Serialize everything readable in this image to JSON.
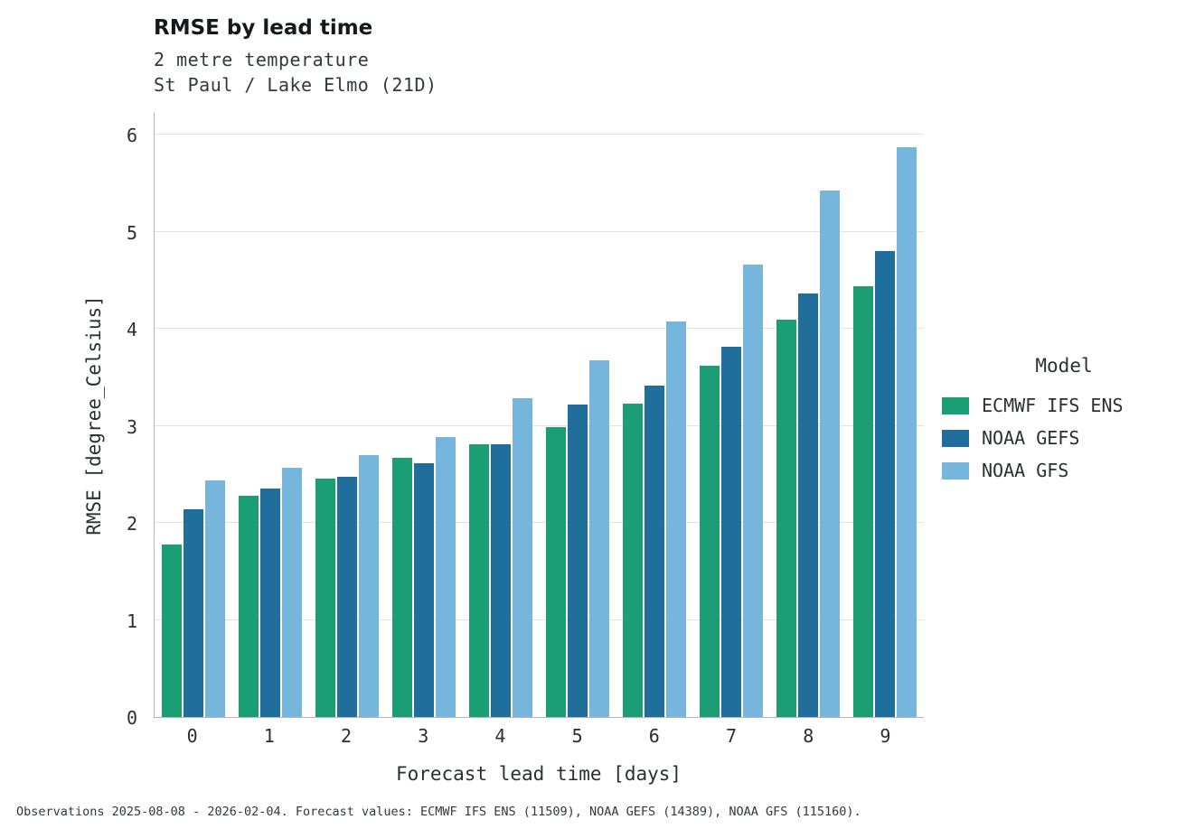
{
  "title": "RMSE by lead time",
  "subtitle1": "2 metre temperature",
  "subtitle2": "St Paul / Lake Elmo (21D)",
  "footer": "Observations 2025-08-08 - 2026-02-04. Forecast values: ECMWF IFS ENS (11509), NOAA GEFS (14389), NOAA GFS (115160).",
  "legend": {
    "title": "Model"
  },
  "colors": {
    "ecmwf_green": "#1c9e74",
    "gefs_blue": "#1f6e9c",
    "gfs_lightblue": "#76b6dc",
    "gridline": "#e2e2e2",
    "spine": "#b4b4b4"
  },
  "chart_data": {
    "type": "bar",
    "title": "RMSE by lead time",
    "subtitle": [
      "2 metre temperature",
      "St Paul / Lake Elmo (21D)"
    ],
    "xlabel": "Forecast lead time [days]",
    "ylabel": "RMSE [degree_Celsius]",
    "categories": [
      "0",
      "1",
      "2",
      "3",
      "4",
      "5",
      "6",
      "7",
      "8",
      "9"
    ],
    "series": [
      {
        "name": "ECMWF IFS ENS",
        "color": "#1c9e74",
        "values": [
          1.78,
          2.28,
          2.46,
          2.67,
          2.81,
          2.99,
          3.23,
          3.62,
          4.09,
          4.44
        ]
      },
      {
        "name": "NOAA GEFS",
        "color": "#1f6e9c",
        "values": [
          2.14,
          2.35,
          2.47,
          2.61,
          2.81,
          3.22,
          3.41,
          3.81,
          4.36,
          4.8
        ]
      },
      {
        "name": "NOAA GFS",
        "color": "#76b6dc",
        "values": [
          2.44,
          2.57,
          2.7,
          2.88,
          3.28,
          3.67,
          4.07,
          4.66,
          5.42,
          5.87
        ]
      }
    ],
    "ylim": [
      0,
      6
    ],
    "yticks": [
      0,
      1,
      2,
      3,
      4,
      5,
      6
    ],
    "grid": true,
    "legend_title": "Model",
    "legend_position": "right"
  }
}
